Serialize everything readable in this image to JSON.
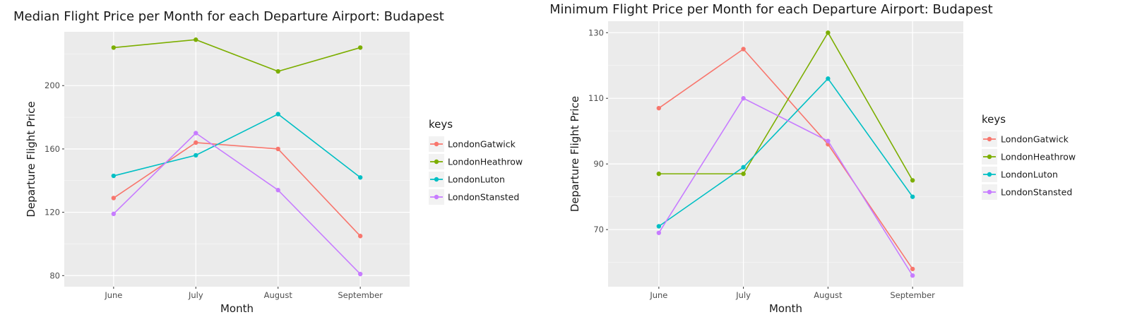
{
  "chart_data": [
    {
      "type": "line",
      "title": "Median Flight Price per Month for each Departure Airport: Budapest",
      "xlabel": "Month",
      "ylabel": "Departure Flight Price",
      "categories": [
        "June",
        "July",
        "August",
        "September"
      ],
      "yticks": [
        80,
        120,
        160,
        200
      ],
      "ylim": [
        73,
        234
      ],
      "grid": true,
      "legend_title": "keys",
      "legend_position": "right",
      "series": [
        {
          "name": "LondonGatwick",
          "color": "#F8766D",
          "values": [
            129,
            164,
            160,
            105
          ]
        },
        {
          "name": "LondonHeathrow",
          "color": "#7CAE00",
          "values": [
            224,
            229,
            209,
            224
          ]
        },
        {
          "name": "LondonLuton",
          "color": "#00BFC4",
          "values": [
            143,
            156,
            182,
            142
          ]
        },
        {
          "name": "LondonStansted",
          "color": "#C77CFF",
          "values": [
            119,
            170,
            134,
            81
          ]
        }
      ]
    },
    {
      "type": "line",
      "title": "Minimum Flight Price per Month for each Departure Airport: Budapest",
      "xlabel": "Month",
      "ylabel": "Departure Flight Price",
      "categories": [
        "June",
        "July",
        "August",
        "September"
      ],
      "yticks": [
        70,
        90,
        110,
        130
      ],
      "ylim": [
        52.6,
        133.5
      ],
      "grid": true,
      "legend_title": "keys",
      "legend_position": "right",
      "series": [
        {
          "name": "LondonGatwick",
          "color": "#F8766D",
          "values": [
            107,
            125,
            96,
            58
          ]
        },
        {
          "name": "LondonHeathrow",
          "color": "#7CAE00",
          "values": [
            87,
            87,
            130,
            85
          ]
        },
        {
          "name": "LondonLuton",
          "color": "#00BFC4",
          "values": [
            71,
            89,
            116,
            80
          ]
        },
        {
          "name": "LondonStansted",
          "color": "#C77CFF",
          "values": [
            69,
            110,
            97,
            56
          ]
        }
      ]
    }
  ]
}
